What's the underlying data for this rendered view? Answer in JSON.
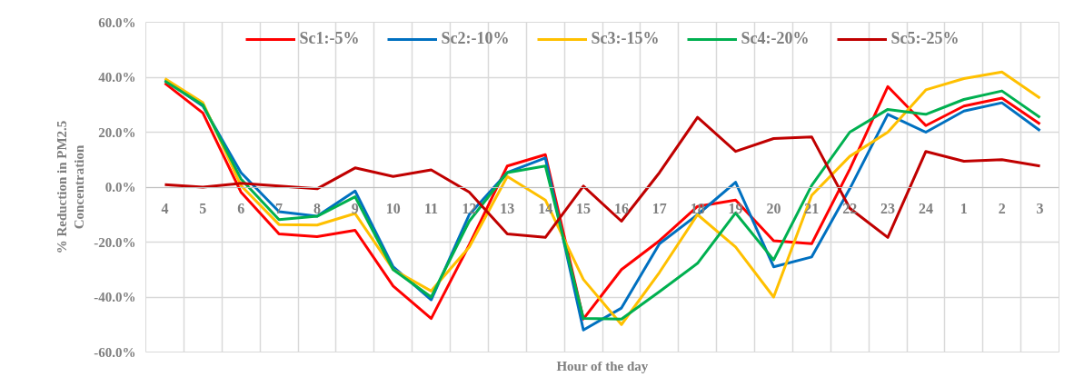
{
  "chart_data": {
    "type": "line",
    "xlabel": "Hour of the day",
    "ylabel": "% Reduction in PM2.5 Concentration",
    "categories": [
      "4",
      "5",
      "6",
      "7",
      "8",
      "9",
      "10",
      "11",
      "12",
      "13",
      "14",
      "15",
      "16",
      "17",
      "18",
      "19",
      "20",
      "21",
      "22",
      "23",
      "24",
      "1",
      "2",
      "3"
    ],
    "series": [
      {
        "name": "Sc1:-5%",
        "color": "#ff0000",
        "values": [
          37.8,
          27,
          -1.8,
          -17,
          -18,
          -15.7,
          -36,
          -47.8,
          -21,
          7.7,
          11.8,
          -48,
          -30,
          -19.5,
          -7,
          -4.7,
          -19.5,
          -20.6,
          6.5,
          36.6,
          22.4,
          29.5,
          32.4,
          23
        ]
      },
      {
        "name": "Sc2:-10%",
        "color": "#0070c0",
        "values": [
          38.9,
          29.5,
          5.3,
          -8.9,
          -10.6,
          -1.4,
          -29,
          -41,
          -10,
          5.3,
          10.6,
          -52,
          -44,
          -20.6,
          -10,
          1.8,
          -29,
          -25.4,
          -0.6,
          26.5,
          20,
          27.7,
          30.7,
          20.6
        ]
      },
      {
        "name": "Sc3:-15%",
        "color": "#ffc000",
        "values": [
          39.5,
          30.7,
          0.6,
          -13.6,
          -13.8,
          -9.6,
          -30,
          -37.8,
          -21.8,
          3.9,
          -4.7,
          -33.6,
          -50,
          -31,
          -10,
          -21.8,
          -40,
          -3,
          11.2,
          20,
          35.4,
          39.5,
          41.9,
          32.4
        ]
      },
      {
        "name": "Sc4:-20%",
        "color": "#00b050",
        "values": [
          38.6,
          29.9,
          3,
          -11.8,
          -10.6,
          -3.5,
          -30,
          -40,
          -12.4,
          5.3,
          7.7,
          -47.8,
          -48,
          -38,
          -27.7,
          -9.4,
          -26.5,
          0.6,
          20,
          28.3,
          26.5,
          31.9,
          35,
          25.4
        ]
      },
      {
        "name": "Sc5:-25%",
        "color": "#c00000",
        "values": [
          0.9,
          0,
          1.4,
          0.4,
          -0.6,
          7,
          3.9,
          6.3,
          -1.8,
          -17,
          -18.3,
          0.4,
          -12.4,
          5.3,
          25.4,
          13,
          17.7,
          18.3,
          -7.7,
          -18.3,
          13,
          9.4,
          10,
          7.7
        ]
      }
    ],
    "ylim": [
      -60,
      60
    ],
    "yticks": [
      {
        "value": -60,
        "label": "-60.0%"
      },
      {
        "value": -40,
        "label": "-40.0%"
      },
      {
        "value": -20,
        "label": "-20.0%"
      },
      {
        "value": 0,
        "label": "0.0%"
      },
      {
        "value": 20,
        "label": "20.0%"
      },
      {
        "value": 40,
        "label": "40.0%"
      },
      {
        "value": 60,
        "label": "60.0%"
      }
    ],
    "grid": true,
    "legend": "top",
    "marker": "none",
    "line_style": "solid"
  }
}
